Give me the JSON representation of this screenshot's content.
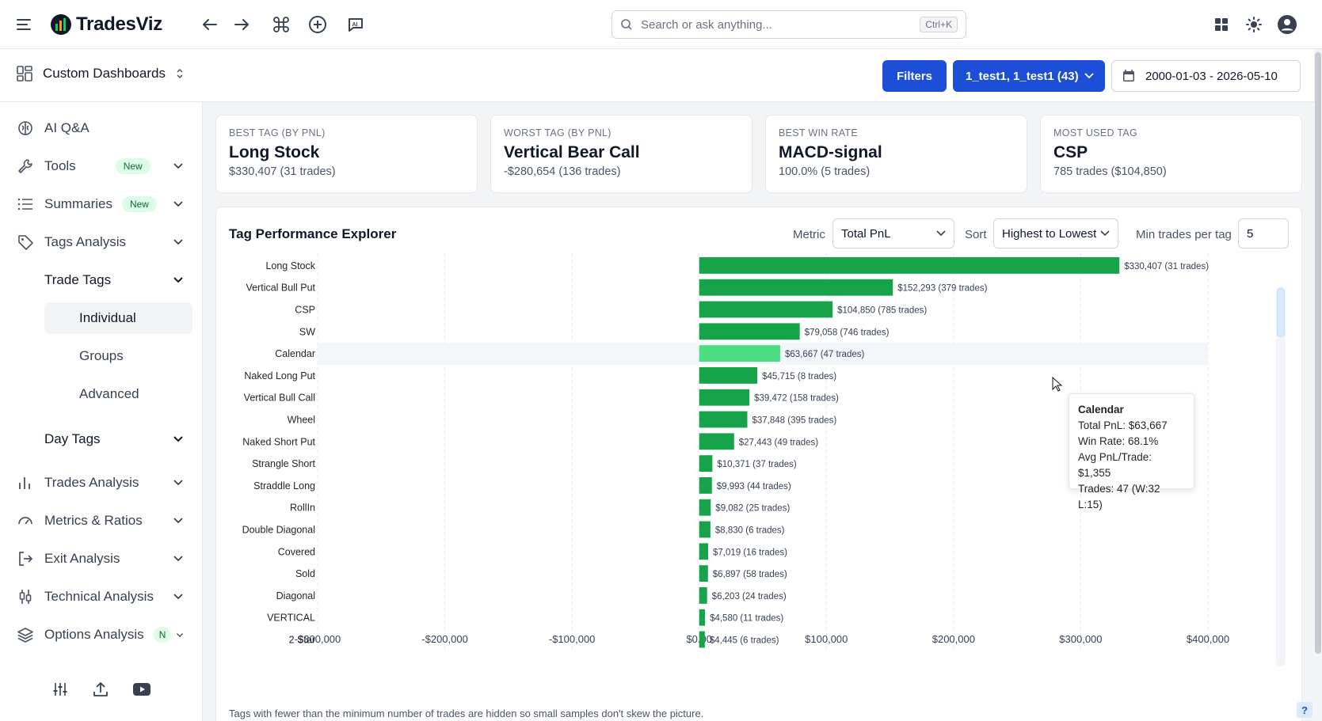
{
  "app": {
    "name": "TradesViz"
  },
  "search": {
    "placeholder": "Search or ask anything...",
    "shortcut": "Ctrl+K"
  },
  "subheader": {
    "dashboard_label": "Custom Dashboards",
    "filters_label": "Filters",
    "account_label": "1_test1, 1_test1 (43)",
    "date_range": "2000-01-03 - 2026-05-10"
  },
  "sidebar": {
    "items": [
      {
        "label": "AI Q&A",
        "icon": "brain-icon"
      },
      {
        "label": "Tools",
        "icon": "wrench-icon",
        "badge": "New"
      },
      {
        "label": "Summaries",
        "icon": "list-icon",
        "badge": "New"
      },
      {
        "label": "Tags Analysis",
        "icon": "tag-icon"
      },
      {
        "label": "Trades Analysis",
        "icon": "bar-chart-icon"
      },
      {
        "label": "Metrics & Ratios",
        "icon": "gauge-icon"
      },
      {
        "label": "Exit Analysis",
        "icon": "exit-icon"
      },
      {
        "label": "Technical Analysis",
        "icon": "candlestick-icon"
      },
      {
        "label": "Options Analysis",
        "icon": "layers-icon",
        "badge": "N"
      }
    ],
    "trade_tags": "Trade Tags",
    "sub_items": [
      "Individual",
      "Groups",
      "Advanced"
    ],
    "day_tags": "Day Tags"
  },
  "kpis": [
    {
      "caption": "BEST TAG (BY PNL)",
      "value": "Long Stock",
      "sub": "$330,407 (31 trades)"
    },
    {
      "caption": "WORST TAG (BY PNL)",
      "value": "Vertical Bear Call",
      "sub": "-$280,654 (136 trades)"
    },
    {
      "caption": "BEST WIN RATE",
      "value": "MACD-signal",
      "sub": "100.0% (5 trades)"
    },
    {
      "caption": "MOST USED TAG",
      "value": "CSP",
      "sub": "785 trades ($104,850)"
    }
  ],
  "panel": {
    "title": "Tag Performance Explorer",
    "metric_label": "Metric",
    "metric_value": "Total PnL",
    "sort_label": "Sort",
    "sort_value": "Highest to Lowest",
    "min_trades_label": "Min trades per tag",
    "min_trades_value": "5",
    "note": "Tags with fewer than the minimum number of trades are hidden so small samples don't skew the picture."
  },
  "tooltip": {
    "title": "Calendar",
    "lines": [
      "Total PnL: $63,667",
      "Win Rate: 68.1%",
      "Avg PnL/Trade: $1,355",
      "Trades: 47 (W:32 L:15)"
    ]
  },
  "chart_data": {
    "type": "bar",
    "orientation": "horizontal",
    "xlim": [
      -300000,
      400000
    ],
    "x_ticks": [
      "-$300,000",
      "-$200,000",
      "-$100,000",
      "$0.00",
      "$100,000",
      "$200,000",
      "$300,000",
      "$400,000"
    ],
    "grid": true,
    "bar_color": "#16a34a",
    "highlight_color": "#4ade80",
    "highlighted": "Calendar",
    "categories": [
      "Long Stock",
      "Vertical Bull Put",
      "CSP",
      "SW",
      "Calendar",
      "Naked Long Put",
      "Vertical Bull Call",
      "Wheel",
      "Naked Short Put",
      "Strangle Short",
      "Straddle Long",
      "RollIn",
      "Double Diagonal",
      "Covered",
      "Sold",
      "Diagonal",
      "VERTICAL",
      "2 Star"
    ],
    "values": [
      330407,
      152293,
      104850,
      79058,
      63667,
      45715,
      39472,
      37848,
      27443,
      10371,
      9993,
      9082,
      8830,
      7019,
      6897,
      6203,
      4580,
      4445
    ],
    "labels": [
      "$330,407",
      "$152,293",
      "$104,850",
      "$79,058",
      "$63,667",
      "$45,715",
      "$39,472",
      "$37,848",
      "$27,443",
      "$10,371",
      "$9,993",
      "$9,082",
      "$8,830",
      "$7,019",
      "$6,897",
      "$6,203",
      "$4,580",
      "$4,445"
    ],
    "trades": [
      "(31 trades)",
      "(379 trades)",
      "(785 trades)",
      "(746 trades)",
      "(47 trades)",
      "(8 trades)",
      "(158 trades)",
      "(395 trades)",
      "(49 trades)",
      "(37 trades)",
      "(44 trades)",
      "(25 trades)",
      "(6 trades)",
      "(16 trades)",
      "(58 trades)",
      "(24 trades)",
      "(11 trades)",
      "(6 trades)"
    ]
  }
}
